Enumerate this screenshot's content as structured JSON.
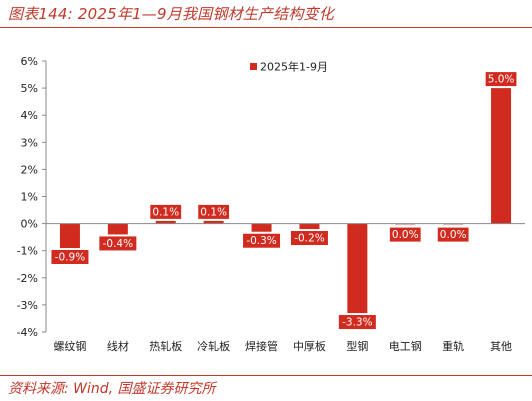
{
  "header": {
    "title": "图表144: 2025年1—9月我国钢材生产结构变化"
  },
  "footer": {
    "source": "资料来源: Wind, 国盛证券研究所"
  },
  "colors": {
    "bar": "#d12b1f",
    "accent": "#c0392b"
  },
  "chart_data": {
    "type": "bar",
    "categories": [
      "螺纹钢",
      "线材",
      "热轧板",
      "冷轧板",
      "焊接管",
      "中厚板",
      "型钢",
      "电工钢",
      "重轨",
      "其他"
    ],
    "series": [
      {
        "name": "2025年1-9月",
        "values": [
          -0.9,
          -0.4,
          0.1,
          0.1,
          -0.3,
          -0.2,
          -3.3,
          0.0,
          0.0,
          5.0
        ],
        "labels": [
          "-0.9%",
          "-0.4%",
          "0.1%",
          "0.1%",
          "-0.3%",
          "-0.2%",
          "-3.3%",
          "0.0%",
          "0.0%",
          "5.0%"
        ]
      }
    ],
    "yticks": [
      "6%",
      "5%",
      "4%",
      "3%",
      "2%",
      "1%",
      "0%",
      "-1%",
      "-2%",
      "-3%",
      "-4%"
    ],
    "ylim": [
      -4,
      6
    ],
    "legend": "top-center",
    "grid": false
  }
}
